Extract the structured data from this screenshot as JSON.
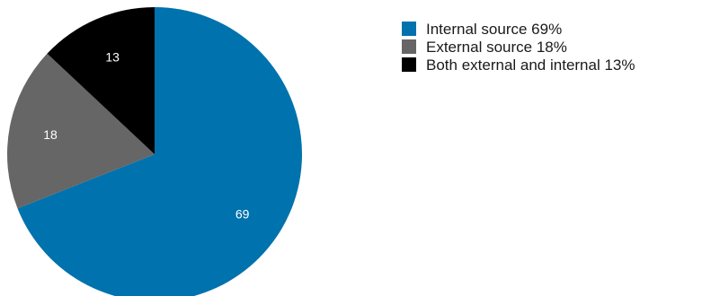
{
  "chart_data": {
    "type": "pie",
    "title": "",
    "start_angle_deg": 0,
    "direction": "clockwise",
    "slices": [
      {
        "name": "Internal source",
        "value": 69,
        "data_label": "69",
        "legend_label": "Internal source 69%",
        "color": "#0072ad"
      },
      {
        "name": "External source",
        "value": 18,
        "data_label": "18",
        "legend_label": "External source 18%",
        "color": "#666666"
      },
      {
        "name": "Both external and internal",
        "value": 13,
        "data_label": "13",
        "legend_label": "Both external and internal 13%",
        "color": "#000000"
      }
    ],
    "legend_position": "top-right"
  }
}
